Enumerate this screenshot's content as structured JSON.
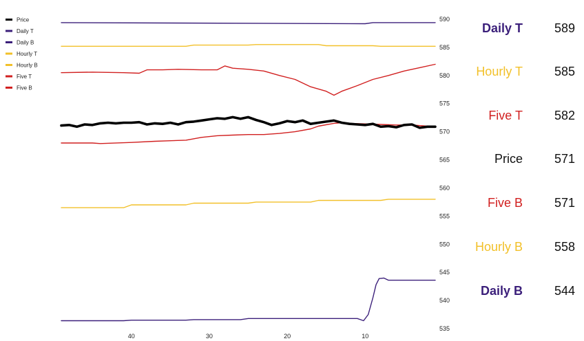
{
  "chart_data": {
    "type": "line",
    "title": "",
    "xlabel": "",
    "ylabel": "",
    "x_ticks": [
      40,
      30,
      20,
      10
    ],
    "xlim": [
      49,
      1
    ],
    "ylim": [
      535,
      590
    ],
    "y_ticks": [
      535,
      540,
      545,
      550,
      555,
      560,
      565,
      570,
      575,
      580,
      585,
      590
    ],
    "grid": false,
    "legend_position": "top-left",
    "series": [
      {
        "name": "Price",
        "color": "#000000",
        "weight": "bold",
        "x": [
          49,
          48,
          47,
          46,
          45,
          44,
          43,
          42,
          41,
          40,
          39,
          38,
          37,
          36,
          35,
          34,
          33,
          32,
          31,
          30,
          29,
          28,
          27,
          26,
          25,
          24,
          23,
          22,
          21,
          20,
          19,
          18,
          17,
          16,
          15,
          14,
          13,
          12,
          11,
          10,
          9,
          8,
          7,
          6,
          5,
          4,
          3,
          2,
          1
        ],
        "values": [
          571.1,
          571.2,
          570.9,
          571.3,
          571.2,
          571.5,
          571.6,
          571.5,
          571.6,
          571.6,
          571.7,
          571.3,
          571.5,
          571.4,
          571.6,
          571.3,
          571.7,
          571.8,
          572.0,
          572.2,
          572.4,
          572.3,
          572.6,
          572.3,
          572.6,
          572.1,
          571.7,
          571.2,
          571.5,
          571.9,
          571.7,
          572.0,
          571.4,
          571.6,
          571.8,
          572.0,
          571.6,
          571.4,
          571.3,
          571.2,
          571.4,
          570.9,
          571.0,
          570.8,
          571.2,
          571.3,
          570.7,
          570.9,
          570.9
        ]
      },
      {
        "name": "Daily T",
        "color": "#3b1f7a",
        "weight": "normal",
        "x": [
          49,
          10,
          9,
          1
        ],
        "values": [
          589.4,
          589.2,
          589.4,
          589.4
        ]
      },
      {
        "name": "Daily B",
        "color": "#3b1f7a",
        "weight": "normal",
        "x": [
          49,
          41,
          40,
          33,
          32,
          26,
          25,
          11,
          10.6,
          10.2,
          9.6,
          9,
          8.6,
          8.2,
          7.6,
          7,
          6,
          1
        ],
        "values": [
          536.4,
          536.4,
          536.5,
          536.5,
          536.6,
          536.6,
          536.8,
          536.8,
          536.6,
          536.4,
          537.5,
          540.5,
          542.8,
          543.9,
          544.0,
          543.6,
          543.6,
          543.6
        ]
      },
      {
        "name": "Hourly T",
        "color": "#f2c029",
        "weight": "normal",
        "x": [
          49,
          33,
          32,
          25,
          24,
          16,
          15,
          9,
          8,
          1
        ],
        "values": [
          585.2,
          585.2,
          585.4,
          585.4,
          585.5,
          585.5,
          585.3,
          585.3,
          585.2,
          585.2
        ]
      },
      {
        "name": "Hourly B",
        "color": "#f2c029",
        "weight": "normal",
        "x": [
          49,
          41,
          40,
          33,
          32,
          25,
          24,
          17,
          16,
          8,
          7,
          1
        ],
        "values": [
          556.5,
          556.5,
          557.0,
          557.0,
          557.3,
          557.3,
          557.5,
          557.5,
          557.8,
          557.8,
          558.0,
          558.0
        ]
      },
      {
        "name": "Five T",
        "color": "#d11f1f",
        "weight": "normal",
        "x": [
          49,
          45,
          41,
          39,
          38,
          36,
          34,
          31,
          29,
          28,
          27,
          25,
          23,
          21,
          19,
          17,
          15,
          14,
          13,
          11,
          9,
          7,
          5,
          3,
          1
        ],
        "values": [
          580.5,
          580.6,
          580.5,
          580.4,
          581.0,
          581.0,
          581.1,
          581.0,
          581.0,
          581.7,
          581.3,
          581.1,
          580.8,
          580.0,
          579.3,
          578.0,
          577.2,
          576.5,
          577.2,
          578.2,
          579.3,
          580.0,
          580.8,
          581.4,
          582.0
        ]
      },
      {
        "name": "Five B",
        "color": "#d11f1f",
        "weight": "normal",
        "x": [
          49,
          45,
          44,
          40,
          37,
          35,
          33,
          31,
          29,
          27,
          25,
          23,
          21,
          19,
          17,
          16,
          14,
          13,
          12,
          10,
          8,
          6,
          4,
          2,
          1
        ],
        "values": [
          568.0,
          568.0,
          567.9,
          568.1,
          568.3,
          568.4,
          568.5,
          569.0,
          569.3,
          569.4,
          569.5,
          569.5,
          569.7,
          570.0,
          570.5,
          571.0,
          571.5,
          571.6,
          571.5,
          571.4,
          571.3,
          571.2,
          571.2,
          571.0,
          571.0
        ]
      }
    ],
    "side_labels": [
      {
        "label": "Daily T",
        "value": "589",
        "color": "#3b1f7a",
        "bold": true
      },
      {
        "label": "Hourly T",
        "value": "585",
        "color": "#f2c029",
        "bold": false
      },
      {
        "label": "Five T",
        "value": "582",
        "color": "#d11f1f",
        "bold": false
      },
      {
        "label": "Price",
        "value": "571",
        "color": "#111111",
        "bold": false
      },
      {
        "label": "Five B",
        "value": "571",
        "color": "#d11f1f",
        "bold": false
      },
      {
        "label": "Hourly B",
        "value": "558",
        "color": "#f2c029",
        "bold": false
      },
      {
        "label": "Daily B",
        "value": "544",
        "color": "#3b1f7a",
        "bold": true
      }
    ]
  }
}
